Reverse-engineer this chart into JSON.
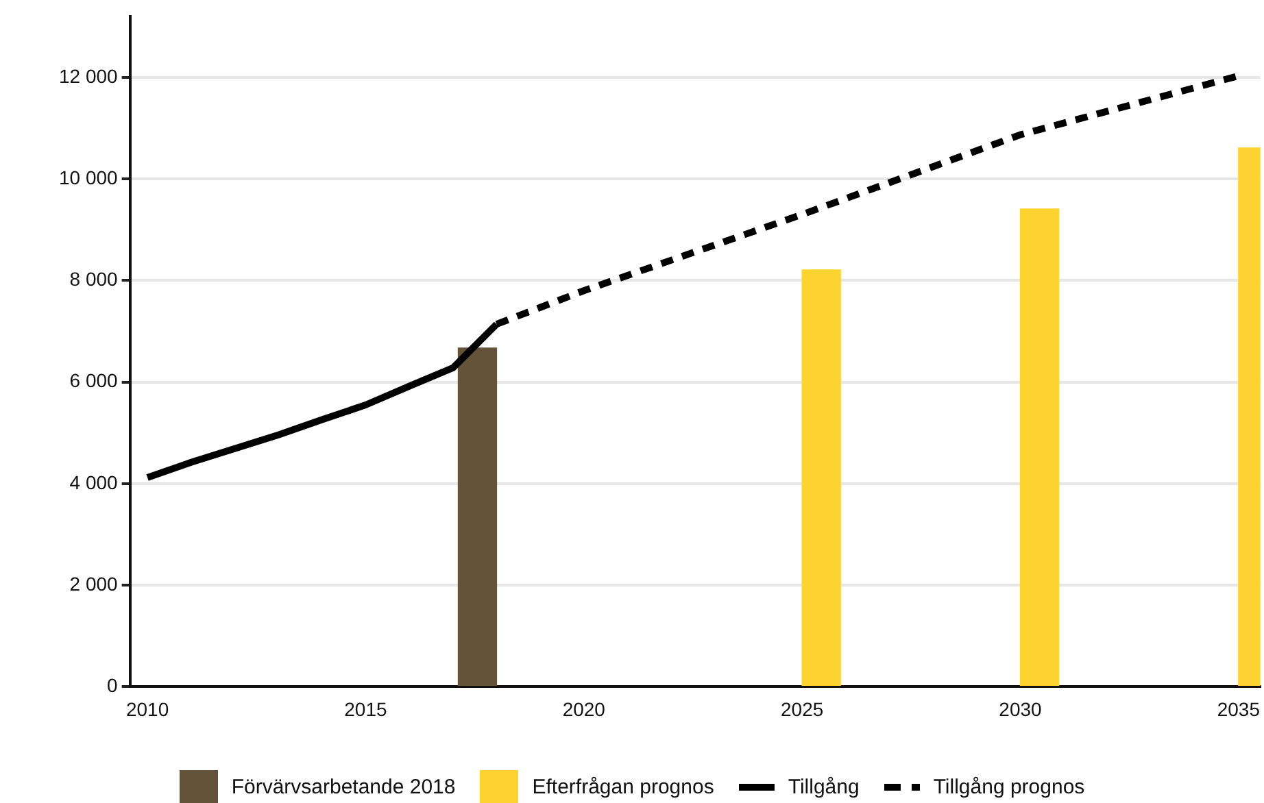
{
  "chart_data": {
    "type": "line",
    "xlim": [
      2009.6,
      2035.5
    ],
    "xticks": [
      2010,
      2015,
      2020,
      2025,
      2030,
      2035
    ],
    "ylim": [
      0,
      13200
    ],
    "yticks": [
      0,
      {
        "value": 2000,
        "label": "2 000"
      },
      {
        "value": 4000,
        "label": "4 000"
      },
      {
        "value": 6000,
        "label": "6 000"
      },
      {
        "value": 8000,
        "label": "8 000"
      },
      {
        "value": 10000,
        "label": "10 000"
      },
      {
        "value": 12000,
        "label": "12 000"
      }
    ],
    "grid": "y",
    "legend": "bottom",
    "marker": "none",
    "series": [
      {
        "name": "Förvärvsarbetande 2018",
        "type": "bar",
        "color": "#635439",
        "x": [
          2018
        ],
        "values": [
          6670
        ]
      },
      {
        "name": "Efterfrågan prognos",
        "type": "bar",
        "color": "#fcd32f",
        "x": [
          2025,
          2030,
          2035
        ],
        "values": [
          8210,
          9410,
          10610
        ]
      },
      {
        "name": "Tillgång",
        "color": "#000000",
        "line_style": "solid",
        "x": [
          2010,
          2011,
          2012,
          2013,
          2014,
          2015,
          2016,
          2017,
          2018
        ],
        "values": [
          4120,
          4420,
          4690,
          4960,
          5260,
          5550,
          5920,
          6280,
          7140
        ]
      },
      {
        "name": "Tillgång prognos",
        "color": "#000000",
        "line_style": "dashed",
        "x": [
          2018,
          2020,
          2025,
          2030,
          2035
        ],
        "values": [
          7140,
          7800,
          9300,
          10870,
          12030
        ]
      }
    ]
  }
}
